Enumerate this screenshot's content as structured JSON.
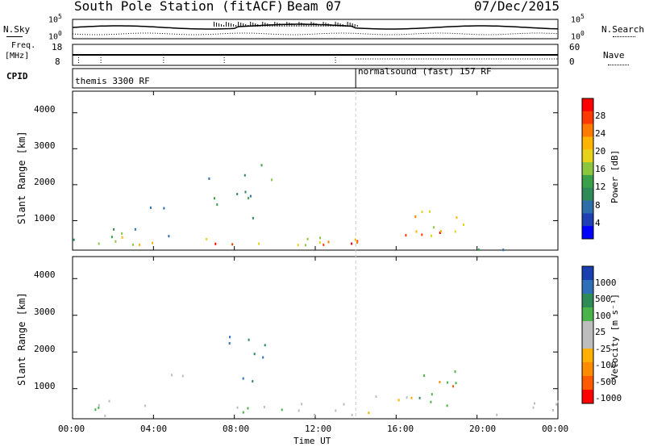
{
  "header": {
    "station": "South Pole Station (fitACF)",
    "beam": "Beam 07",
    "date": "07/Dec/2015"
  },
  "top_panels": {
    "nsky_label": "N.Sky",
    "nsearch_label": "N.Search",
    "freq_label_line1": "Freq.",
    "freq_label_line2": "[MHz]",
    "nave_label": "Nave",
    "cpid_label": "CPID",
    "noise_ticks_left": [
      "10^5",
      "10^0"
    ],
    "noise_ticks_right": [
      "10^5",
      "10^0"
    ],
    "freq_ticks": [
      "18",
      "8"
    ],
    "nave_ticks": [
      "60",
      "0"
    ],
    "cpid_segments": [
      {
        "label": "themis 3300 RF",
        "start_h": 0,
        "end_h": 14
      },
      {
        "label": "normalsound (fast) 157 RF",
        "start_h": 14,
        "end_h": 24
      }
    ]
  },
  "xaxis": {
    "label": "Time UT",
    "ticks": [
      "00:00",
      "04:00",
      "08:00",
      "12:00",
      "16:00",
      "20:00",
      "00:00"
    ]
  },
  "power_panel": {
    "ylabel": "Slant Range [km]",
    "yticks": [
      "4000",
      "3000",
      "2000",
      "1000"
    ],
    "colorbar_label": "Power [dB]",
    "colorbar_ticks": [
      "28",
      "24",
      "20",
      "16",
      "12",
      "8",
      "4"
    ],
    "colorbar_colors": [
      "#ff0000",
      "#ff3a00",
      "#ff7a00",
      "#ffb400",
      "#e6d21a",
      "#8cc63f",
      "#3aa04a",
      "#2e8b57",
      "#2d6ea8",
      "#1f3fb5",
      "#0000ff"
    ]
  },
  "velocity_panel": {
    "ylabel": "Slant Range [km]",
    "yticks": [
      "4000",
      "3000",
      "2000",
      "1000"
    ],
    "colorbar_label": "Velocity [m s⁻¹]",
    "colorbar_ticks": [
      "1000",
      "500",
      "100",
      "25",
      "-25",
      "-100",
      "-500",
      "-1000"
    ],
    "colorbar_colors": [
      "#1a3fb0",
      "#2f6fb8",
      "#2e8b57",
      "#4bb34b",
      "#bdbdbd",
      "#bdbdbd",
      "#ffb000",
      "#ff8c00",
      "#ff5a00",
      "#ff0000"
    ]
  },
  "chart_data": {
    "type": "heatmap",
    "title": "South Pole Station (fitACF)",
    "xlabel": "Time UT",
    "ylabel": "Slant Range [km]",
    "xlim": [
      0,
      24
    ],
    "ylim": [
      180,
      4600
    ],
    "panels": [
      {
        "name": "Power [dB]",
        "zlim": [
          0,
          30
        ],
        "scatter_regions": [
          {
            "t": [
              0.0,
              14.0
            ],
            "r": [
              300,
              600
            ],
            "z": 18
          },
          {
            "t": [
              5.0,
              14.0
            ],
            "r": [
              300,
              500
            ],
            "z": 28
          },
          {
            "t": [
              0.0,
              5.0
            ],
            "r": [
              300,
              1000
            ],
            "z": 12
          },
          {
            "t": [
              0.5,
              6.5
            ],
            "r": [
              1350,
              1450
            ],
            "z": 6
          },
          {
            "t": [
              6.5,
              9.0
            ],
            "r": [
              800,
              2300
            ],
            "z": 10
          },
          {
            "t": [
              9.0,
              10.0
            ],
            "r": [
              1800,
              2700
            ],
            "z": 16
          },
          {
            "t": [
              14.0,
              19.0
            ],
            "r": [
              300,
              800
            ],
            "z": 24
          },
          {
            "t": [
              16.5,
              20.0
            ],
            "r": [
              600,
              1600
            ],
            "z": 18
          },
          {
            "t": [
              19.5,
              24.0
            ],
            "r": [
              200,
              400
            ],
            "z": 10
          }
        ]
      },
      {
        "name": "Velocity [m s⁻¹]",
        "zlim": [
          -1000,
          1000
        ],
        "scatter_regions": [
          {
            "t": [
              0.0,
              5.0
            ],
            "r": [
              250,
              700
            ],
            "z": 60
          },
          {
            "t": [
              0.5,
              6.5
            ],
            "r": [
              1350,
              1450
            ],
            "z": 0
          },
          {
            "t": [
              5.0,
              14.0
            ],
            "r": [
              300,
              800
            ],
            "z": 120
          },
          {
            "t": [
              7.0,
              9.5
            ],
            "r": [
              1200,
              2500
            ],
            "z": 600
          },
          {
            "t": [
              14.0,
              17.0
            ],
            "r": [
              300,
              900
            ],
            "z": -300
          },
          {
            "t": [
              17.0,
              20.0
            ],
            "r": [
              500,
              1600
            ],
            "z": 400
          },
          {
            "t": [
              18.0,
              19.0
            ],
            "r": [
              800,
              1500
            ],
            "z": -600
          },
          {
            "t": [
              20.0,
              24.0
            ],
            "r": [
              200,
              800
            ],
            "z": -80
          }
        ]
      }
    ]
  }
}
